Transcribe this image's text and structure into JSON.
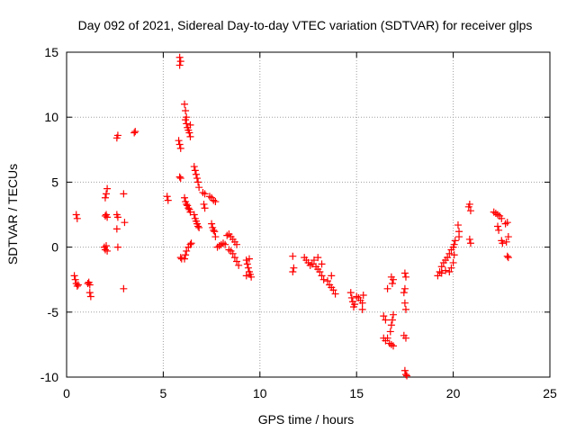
{
  "chart_data": {
    "type": "scatter",
    "title": "Day 092 of 2021, Sidereal Day-to-day VTEC variation (SDTVAR) for receiver glps",
    "xlabel": "GPS time / hours",
    "ylabel": "SDTVAR / TECUs",
    "xlim": [
      0,
      25
    ],
    "ylim": [
      -10,
      15
    ],
    "xticks": [
      0,
      5,
      10,
      15,
      20,
      25
    ],
    "yticks": [
      -10,
      -5,
      0,
      5,
      10,
      15
    ],
    "xtick_labels": [
      "0",
      "5",
      "10",
      "15",
      "20",
      "25"
    ],
    "ytick_labels": [
      "-10",
      "-5",
      "0",
      "5",
      "10",
      "15"
    ],
    "grid": true,
    "marker": "plus",
    "series": [
      {
        "name": "SDTVAR",
        "color": "#ff0000",
        "points": [
          [
            0.4,
            -2.2
          ],
          [
            0.45,
            -2.5
          ],
          [
            0.5,
            -2.8
          ],
          [
            0.55,
            -3.0
          ],
          [
            0.6,
            -2.9
          ],
          [
            0.5,
            2.5
          ],
          [
            0.55,
            2.2
          ],
          [
            1.1,
            -2.8
          ],
          [
            1.15,
            -2.7
          ],
          [
            1.2,
            -3.5
          ],
          [
            1.25,
            -3.8
          ],
          [
            1.2,
            -2.9
          ],
          [
            1.95,
            0.0
          ],
          [
            2.0,
            -0.2
          ],
          [
            2.05,
            0.1
          ],
          [
            2.1,
            -0.3
          ],
          [
            2.0,
            2.4
          ],
          [
            2.05,
            2.5
          ],
          [
            2.1,
            2.3
          ],
          [
            2.0,
            3.8
          ],
          [
            2.05,
            4.1
          ],
          [
            2.1,
            4.5
          ],
          [
            2.6,
            8.4
          ],
          [
            2.65,
            8.6
          ],
          [
            2.6,
            2.5
          ],
          [
            2.65,
            2.3
          ],
          [
            2.6,
            1.4
          ],
          [
            2.65,
            0.0
          ],
          [
            2.95,
            4.1
          ],
          [
            3.0,
            1.9
          ],
          [
            2.95,
            -3.2
          ],
          [
            3.5,
            8.8
          ],
          [
            3.55,
            8.9
          ],
          [
            5.2,
            3.9
          ],
          [
            5.25,
            3.6
          ],
          [
            5.8,
            8.2
          ],
          [
            5.85,
            7.9
          ],
          [
            5.9,
            7.6
          ],
          [
            5.85,
            5.4
          ],
          [
            5.9,
            5.3
          ],
          [
            5.85,
            14.6
          ],
          [
            5.9,
            14.3
          ],
          [
            5.85,
            14.0
          ],
          [
            5.9,
            -0.8
          ],
          [
            5.95,
            -0.9
          ],
          [
            6.1,
            11.0
          ],
          [
            6.15,
            10.5
          ],
          [
            6.2,
            10.0
          ],
          [
            6.2,
            9.5
          ],
          [
            6.25,
            9.2
          ],
          [
            6.3,
            9.0
          ],
          [
            6.35,
            8.8
          ],
          [
            6.4,
            8.5
          ],
          [
            6.4,
            9.4
          ],
          [
            6.15,
            9.8
          ],
          [
            6.1,
            3.8
          ],
          [
            6.15,
            3.5
          ],
          [
            6.2,
            3.3
          ],
          [
            6.25,
            3.2
          ],
          [
            6.3,
            3.0
          ],
          [
            6.35,
            2.9
          ],
          [
            6.4,
            2.7
          ],
          [
            6.1,
            -0.9
          ],
          [
            6.15,
            -0.6
          ],
          [
            6.2,
            -0.3
          ],
          [
            6.3,
            0.0
          ],
          [
            6.4,
            0.2
          ],
          [
            6.45,
            0.3
          ],
          [
            6.6,
            6.2
          ],
          [
            6.65,
            5.9
          ],
          [
            6.7,
            5.6
          ],
          [
            6.75,
            5.3
          ],
          [
            6.8,
            5.0
          ],
          [
            6.85,
            4.6
          ],
          [
            6.6,
            2.5
          ],
          [
            6.65,
            2.2
          ],
          [
            6.7,
            2.0
          ],
          [
            6.75,
            1.8
          ],
          [
            6.8,
            1.6
          ],
          [
            6.85,
            1.5
          ],
          [
            7.05,
            4.2
          ],
          [
            7.15,
            4.1
          ],
          [
            7.1,
            3.3
          ],
          [
            7.15,
            3.0
          ],
          [
            7.4,
            3.9
          ],
          [
            7.5,
            3.8
          ],
          [
            7.6,
            3.6
          ],
          [
            7.7,
            3.5
          ],
          [
            7.5,
            1.8
          ],
          [
            7.55,
            1.5
          ],
          [
            7.6,
            1.3
          ],
          [
            7.65,
            1.2
          ],
          [
            7.7,
            0.8
          ],
          [
            7.8,
            0.0
          ],
          [
            7.9,
            0.1
          ],
          [
            8.0,
            0.2
          ],
          [
            8.1,
            0.3
          ],
          [
            8.2,
            0.2
          ],
          [
            8.3,
            0.9
          ],
          [
            8.4,
            1.0
          ],
          [
            8.5,
            0.8
          ],
          [
            8.6,
            0.6
          ],
          [
            8.7,
            0.4
          ],
          [
            8.8,
            0.2
          ],
          [
            8.4,
            -0.2
          ],
          [
            8.5,
            -0.3
          ],
          [
            8.6,
            -0.5
          ],
          [
            8.7,
            -0.8
          ],
          [
            8.8,
            -1.1
          ],
          [
            8.9,
            -1.4
          ],
          [
            9.3,
            -1.0
          ],
          [
            9.35,
            -1.3
          ],
          [
            9.4,
            -1.6
          ],
          [
            9.45,
            -1.9
          ],
          [
            9.5,
            -2.1
          ],
          [
            9.55,
            -2.3
          ],
          [
            9.3,
            -2.2
          ],
          [
            9.45,
            -0.9
          ],
          [
            11.7,
            -0.7
          ],
          [
            11.75,
            -1.6
          ],
          [
            11.7,
            -1.9
          ],
          [
            12.3,
            -0.8
          ],
          [
            12.4,
            -1.0
          ],
          [
            12.5,
            -1.2
          ],
          [
            12.6,
            -1.4
          ],
          [
            12.7,
            -1.3
          ],
          [
            12.8,
            -1.0
          ],
          [
            12.9,
            -1.5
          ],
          [
            13.0,
            -1.7
          ],
          [
            13.1,
            -1.9
          ],
          [
            13.2,
            -2.2
          ],
          [
            13.3,
            -2.5
          ],
          [
            13.0,
            -0.8
          ],
          [
            13.2,
            -1.3
          ],
          [
            13.5,
            -2.6
          ],
          [
            13.6,
            -2.9
          ],
          [
            13.7,
            -3.1
          ],
          [
            13.8,
            -3.3
          ],
          [
            13.9,
            -3.6
          ],
          [
            13.7,
            -2.2
          ],
          [
            14.7,
            -3.5
          ],
          [
            14.75,
            -3.9
          ],
          [
            14.8,
            -4.2
          ],
          [
            14.85,
            -4.6
          ],
          [
            14.9,
            -4.4
          ],
          [
            15.0,
            -3.8
          ],
          [
            15.1,
            -3.9
          ],
          [
            15.2,
            -4.1
          ],
          [
            15.3,
            -4.3
          ],
          [
            15.3,
            -4.8
          ],
          [
            15.35,
            -3.7
          ],
          [
            16.4,
            -5.3
          ],
          [
            16.5,
            -5.6
          ],
          [
            16.6,
            -3.2
          ],
          [
            16.4,
            -7.0
          ],
          [
            16.5,
            -7.2
          ],
          [
            16.6,
            -7.0
          ],
          [
            16.7,
            -7.4
          ],
          [
            16.8,
            -7.5
          ],
          [
            16.9,
            -7.6
          ],
          [
            16.75,
            -6.5
          ],
          [
            16.8,
            -6.0
          ],
          [
            16.85,
            -5.6
          ],
          [
            16.9,
            -5.2
          ],
          [
            16.8,
            -2.3
          ],
          [
            16.9,
            -2.5
          ],
          [
            16.85,
            -2.8
          ],
          [
            17.5,
            -2.0
          ],
          [
            17.55,
            -2.3
          ],
          [
            17.45,
            -3.5
          ],
          [
            17.5,
            -3.2
          ],
          [
            17.5,
            -4.3
          ],
          [
            17.55,
            -4.8
          ],
          [
            17.45,
            -6.8
          ],
          [
            17.55,
            -7.0
          ],
          [
            17.5,
            -9.5
          ],
          [
            17.55,
            -9.8
          ],
          [
            17.6,
            -9.9
          ],
          [
            19.2,
            -2.2
          ],
          [
            19.3,
            -1.9
          ],
          [
            19.4,
            -1.5
          ],
          [
            19.5,
            -1.2
          ],
          [
            19.6,
            -1.0
          ],
          [
            19.7,
            -0.8
          ],
          [
            19.8,
            -0.5
          ],
          [
            19.9,
            -0.2
          ],
          [
            20.0,
            0.0
          ],
          [
            20.05,
            0.2
          ],
          [
            20.1,
            0.5
          ],
          [
            19.4,
            -2.0
          ],
          [
            19.6,
            -1.8
          ],
          [
            19.8,
            -1.9
          ],
          [
            19.9,
            -1.6
          ],
          [
            20.0,
            -1.2
          ],
          [
            20.05,
            -0.6
          ],
          [
            20.25,
            1.7
          ],
          [
            20.3,
            1.2
          ],
          [
            20.3,
            0.8
          ],
          [
            20.8,
            3.1
          ],
          [
            20.85,
            3.3
          ],
          [
            20.9,
            2.8
          ],
          [
            20.85,
            0.6
          ],
          [
            20.9,
            0.3
          ],
          [
            22.1,
            2.7
          ],
          [
            22.2,
            2.6
          ],
          [
            22.3,
            2.5
          ],
          [
            22.4,
            2.4
          ],
          [
            22.5,
            2.2
          ],
          [
            22.3,
            1.6
          ],
          [
            22.35,
            1.3
          ],
          [
            22.5,
            0.5
          ],
          [
            22.55,
            0.3
          ],
          [
            22.7,
            1.8
          ],
          [
            22.8,
            1.9
          ],
          [
            22.85,
            0.8
          ],
          [
            22.75,
            0.4
          ],
          [
            22.8,
            -0.7
          ],
          [
            22.85,
            -0.8
          ]
        ]
      }
    ]
  }
}
